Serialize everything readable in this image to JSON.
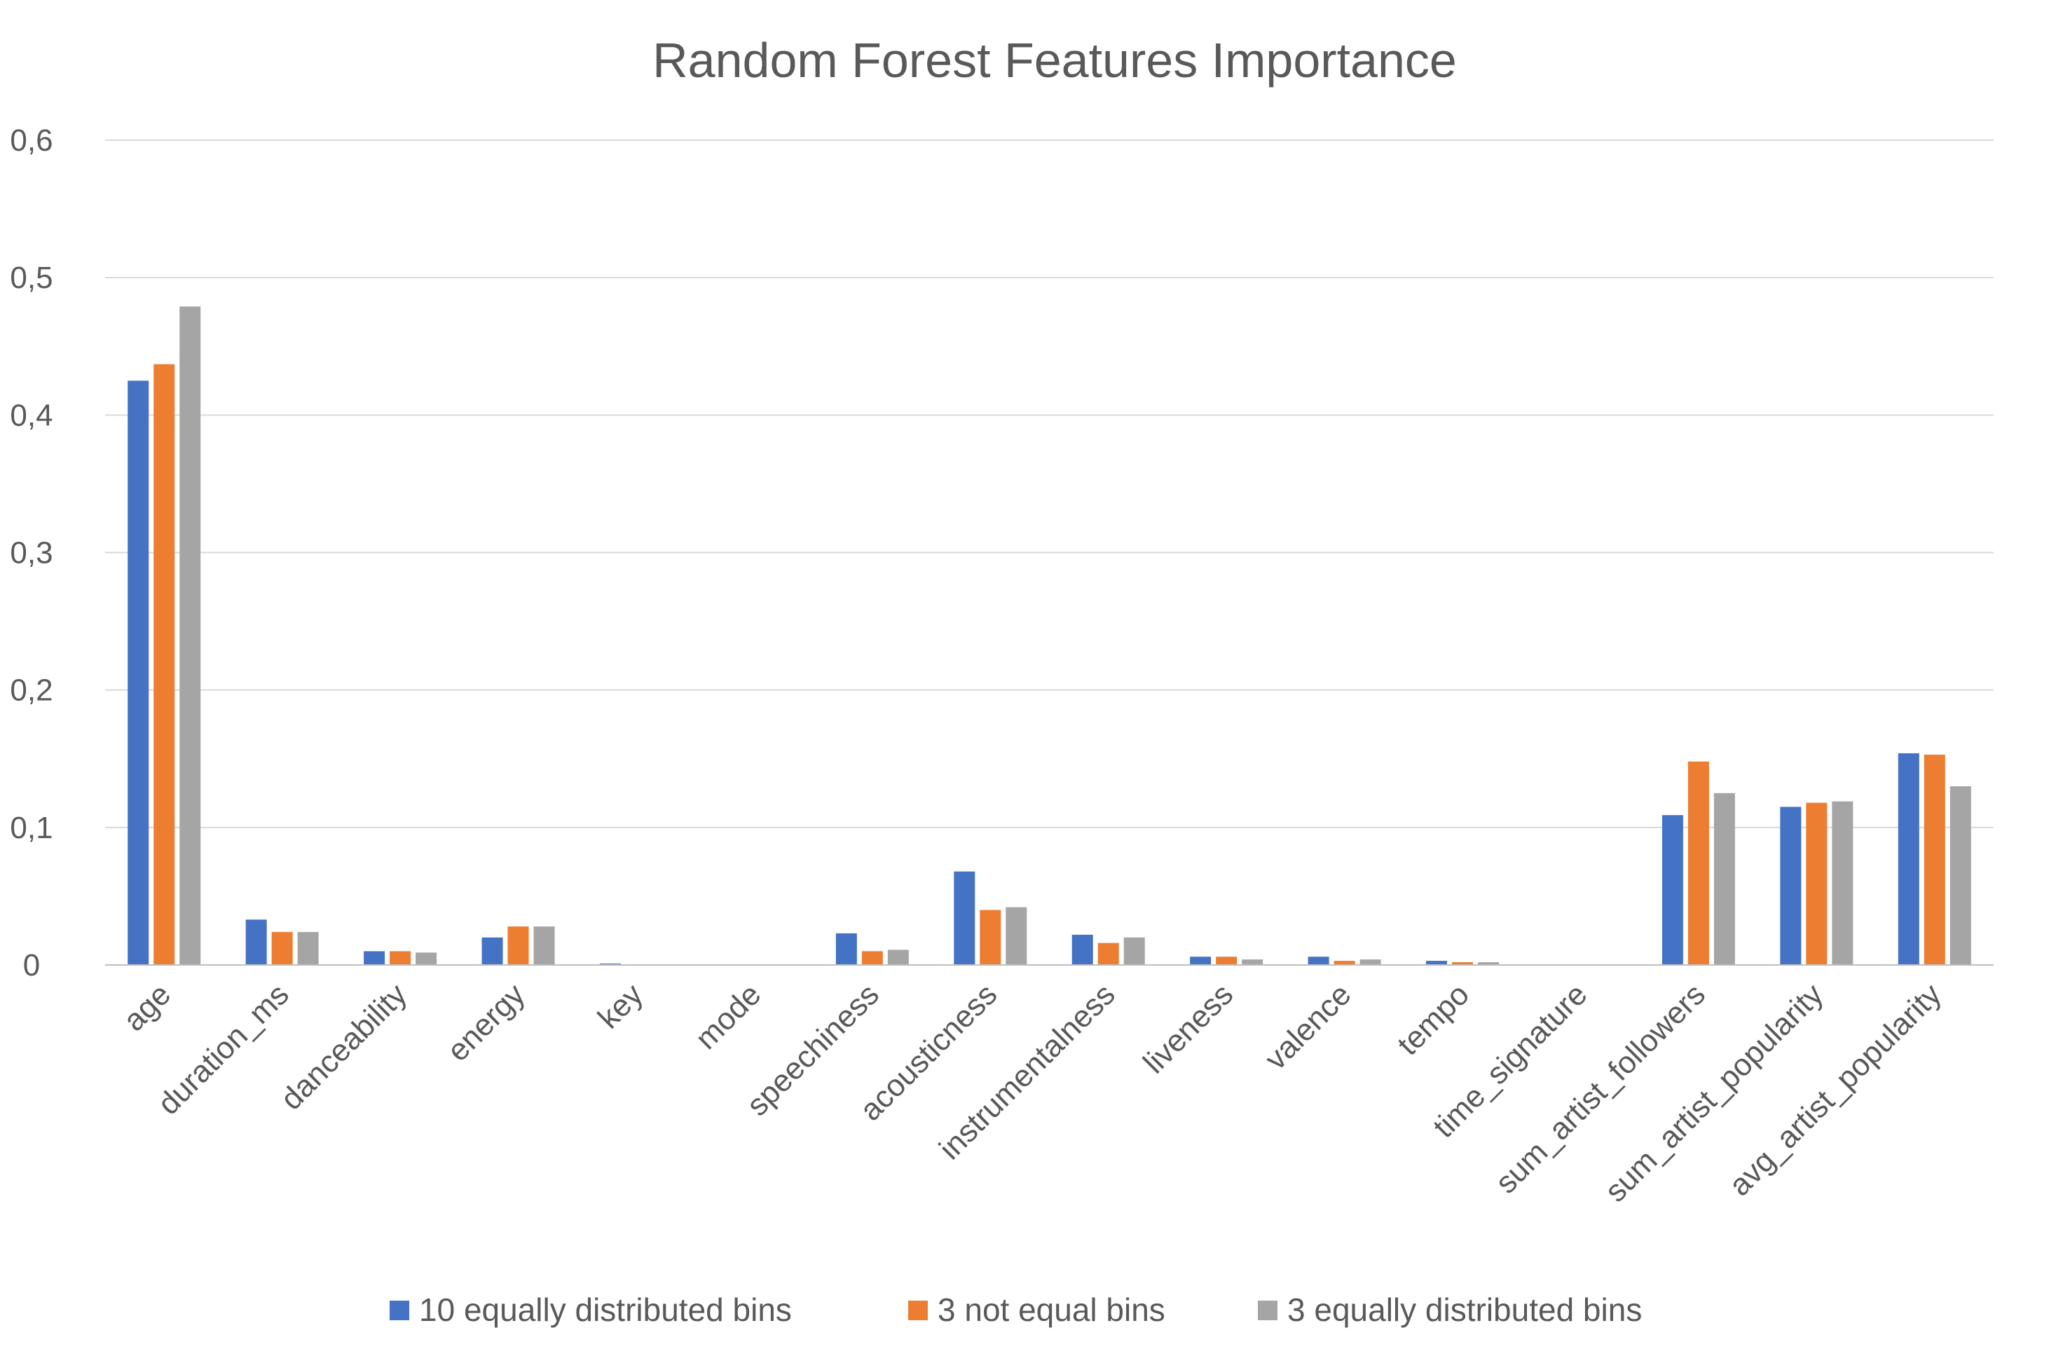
{
  "chart_data": {
    "type": "bar",
    "title": "Random Forest Features Importance",
    "xlabel": "",
    "ylabel": "",
    "ylim": [
      0,
      0.6
    ],
    "yticks": [
      0,
      0.1,
      0.2,
      0.3,
      0.4,
      0.5,
      0.6
    ],
    "ytick_labels": [
      "0",
      "0,1",
      "0,2",
      "0,3",
      "0,4",
      "0,5",
      "0,6"
    ],
    "grid": true,
    "legend_position": "bottom",
    "categories": [
      "age",
      "duration_ms",
      "danceability",
      "energy",
      "key",
      "mode",
      "speechiness",
      "acousticness",
      "instrumentalness",
      "liveness",
      "valence",
      "tempo",
      "time_signature",
      "sum_artist_followers",
      "sum_artist_popularity",
      "avg_artist_popularity"
    ],
    "series": [
      {
        "name": "10 equally distributed bins",
        "color": "#4472c4",
        "values": [
          0.425,
          0.033,
          0.01,
          0.02,
          0.001,
          0.0,
          0.023,
          0.068,
          0.022,
          0.006,
          0.006,
          0.003,
          0.0,
          0.109,
          0.115,
          0.154
        ]
      },
      {
        "name": "3 not equal bins",
        "color": "#ed7d31",
        "values": [
          0.437,
          0.024,
          0.01,
          0.028,
          0.0,
          0.0,
          0.01,
          0.04,
          0.016,
          0.006,
          0.003,
          0.002,
          0.0,
          0.148,
          0.118,
          0.153
        ]
      },
      {
        "name": "3 equally distributed bins",
        "color": "#a5a5a5",
        "values": [
          0.479,
          0.024,
          0.009,
          0.028,
          0.0,
          0.0,
          0.011,
          0.042,
          0.02,
          0.004,
          0.004,
          0.002,
          0.0,
          0.125,
          0.119,
          0.13
        ]
      }
    ]
  }
}
